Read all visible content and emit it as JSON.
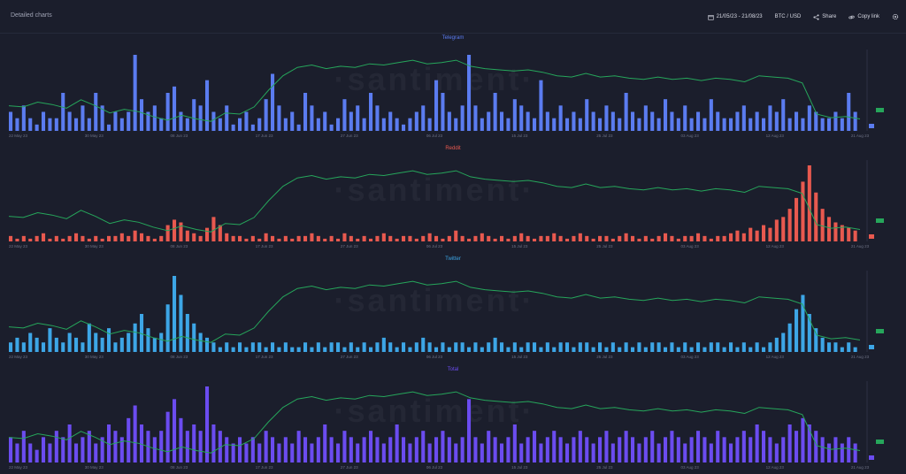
{
  "header": {
    "title": "Detailed charts",
    "date_range": "21/05/23 - 21/08/23",
    "pair": "BTC / USD",
    "share_label": "Share",
    "copy_link_label": "Copy link"
  },
  "watermark": "·santiment·",
  "colors": {
    "price": "#26a65b",
    "telegram": "#5b7cf0",
    "reddit": "#e8594f",
    "twitter": "#3da6e6",
    "total": "#6b4cf0"
  },
  "x_labels": [
    "22 May 23",
    "30 May 23",
    "08 Jun 23",
    "17 Jun 23",
    "27 Jun 23",
    "06 Jul 23",
    "15 Jul 23",
    "25 Jul 23",
    "03 Aug 23",
    "12 Aug 23",
    "21 Aug 23"
  ],
  "chart_data": [
    {
      "type": "bar",
      "title": "Telegram",
      "price_series": [
        27.1,
        27.0,
        27.4,
        27.2,
        26.9,
        27.6,
        27.1,
        26.5,
        26.8,
        26.6,
        26.2,
        25.9,
        26.3,
        26.0,
        25.8,
        26.5,
        26.4,
        27.0,
        28.4,
        29.6,
        30.3,
        30.5,
        30.2,
        30.4,
        30.3,
        30.6,
        30.5,
        30.7,
        30.9,
        30.6,
        30.7,
        30.9,
        30.4,
        30.2,
        30.1,
        30.0,
        30.1,
        29.9,
        29.6,
        29.5,
        29.8,
        29.5,
        29.6,
        29.4,
        29.3,
        29.5,
        29.3,
        29.4,
        29.2,
        29.4,
        29.3,
        29.1,
        29.6,
        29.5,
        29.4,
        29.0,
        26.4,
        26.1,
        26.2,
        26.0
      ],
      "mention_series": [
        3,
        2,
        4,
        2,
        1,
        3,
        2,
        2,
        6,
        3,
        2,
        4,
        2,
        6,
        4,
        1,
        3,
        2,
        3,
        12,
        5,
        3,
        4,
        2,
        6,
        7,
        3,
        2,
        5,
        4,
        8,
        3,
        2,
        4,
        1,
        2,
        3,
        1,
        2,
        5,
        9,
        4,
        2,
        3,
        1,
        6,
        4,
        2,
        3,
        1,
        2,
        5,
        3,
        4,
        2,
        6,
        4,
        2,
        3,
        2,
        1,
        2,
        3,
        4,
        2,
        8,
        6,
        3,
        2,
        4,
        12,
        4,
        2,
        3,
        6,
        3,
        2,
        5,
        4,
        3,
        2,
        8,
        3,
        2,
        4,
        2,
        3,
        2,
        5,
        3,
        2,
        4,
        3,
        2,
        6,
        3,
        2,
        4,
        3,
        2,
        5,
        3,
        2,
        4,
        2,
        3,
        2,
        5,
        3,
        2,
        2,
        3,
        4,
        2,
        3,
        2,
        4,
        3,
        5,
        2,
        3,
        2,
        4,
        3,
        2,
        2,
        3,
        2,
        6,
        3
      ]
    },
    {
      "type": "bar",
      "title": "Reddit",
      "price_series": [
        27.1,
        27.0,
        27.4,
        27.2,
        26.9,
        27.6,
        27.1,
        26.5,
        26.8,
        26.6,
        26.2,
        25.9,
        26.3,
        26.0,
        25.8,
        26.5,
        26.4,
        27.0,
        28.4,
        29.6,
        30.3,
        30.5,
        30.2,
        30.4,
        30.3,
        30.6,
        30.5,
        30.7,
        30.9,
        30.6,
        30.7,
        30.9,
        30.4,
        30.2,
        30.1,
        30.0,
        30.1,
        29.9,
        29.6,
        29.5,
        29.8,
        29.5,
        29.6,
        29.4,
        29.3,
        29.5,
        29.3,
        29.4,
        29.2,
        29.4,
        29.3,
        29.1,
        29.6,
        29.5,
        29.4,
        29.0,
        26.4,
        26.1,
        26.2,
        26.0
      ],
      "mention_series": [
        2,
        1,
        2,
        1,
        2,
        3,
        1,
        2,
        1,
        2,
        3,
        2,
        1,
        2,
        1,
        2,
        2,
        3,
        2,
        4,
        3,
        2,
        1,
        2,
        6,
        8,
        7,
        4,
        3,
        2,
        5,
        9,
        6,
        3,
        2,
        2,
        1,
        2,
        1,
        3,
        2,
        1,
        2,
        1,
        2,
        2,
        3,
        2,
        1,
        2,
        1,
        3,
        2,
        1,
        2,
        1,
        2,
        3,
        2,
        1,
        2,
        2,
        1,
        2,
        3,
        2,
        1,
        2,
        4,
        2,
        1,
        2,
        3,
        2,
        1,
        2,
        1,
        2,
        3,
        2,
        1,
        2,
        2,
        3,
        2,
        1,
        2,
        3,
        2,
        1,
        2,
        2,
        1,
        2,
        3,
        2,
        1,
        2,
        1,
        2,
        3,
        2,
        1,
        2,
        2,
        3,
        2,
        1,
        2,
        2,
        3,
        4,
        3,
        5,
        4,
        6,
        5,
        8,
        9,
        12,
        16,
        22,
        28,
        18,
        12,
        9,
        7,
        6,
        5,
        4
      ]
    },
    {
      "type": "bar",
      "title": "Twitter",
      "price_series": [
        27.1,
        27.0,
        27.4,
        27.2,
        26.9,
        27.6,
        27.1,
        26.5,
        26.8,
        26.6,
        26.2,
        25.9,
        26.3,
        26.0,
        25.8,
        26.5,
        26.4,
        27.0,
        28.4,
        29.6,
        30.3,
        30.5,
        30.2,
        30.4,
        30.3,
        30.6,
        30.5,
        30.7,
        30.9,
        30.6,
        30.7,
        30.9,
        30.4,
        30.2,
        30.1,
        30.0,
        30.1,
        29.9,
        29.6,
        29.5,
        29.8,
        29.5,
        29.6,
        29.4,
        29.3,
        29.5,
        29.3,
        29.4,
        29.2,
        29.4,
        29.3,
        29.1,
        29.6,
        29.5,
        29.4,
        29.0,
        26.4,
        26.1,
        26.2,
        26.0
      ],
      "mention_series": [
        2,
        3,
        2,
        4,
        3,
        2,
        5,
        3,
        2,
        4,
        3,
        2,
        6,
        4,
        3,
        5,
        2,
        3,
        4,
        6,
        8,
        5,
        3,
        4,
        10,
        16,
        12,
        8,
        6,
        4,
        3,
        2,
        1,
        2,
        1,
        2,
        1,
        2,
        2,
        1,
        2,
        1,
        2,
        1,
        1,
        2,
        1,
        2,
        1,
        2,
        2,
        1,
        2,
        1,
        2,
        1,
        2,
        3,
        2,
        1,
        2,
        1,
        2,
        3,
        2,
        1,
        2,
        1,
        2,
        2,
        1,
        2,
        1,
        2,
        3,
        2,
        1,
        2,
        1,
        2,
        2,
        1,
        2,
        1,
        2,
        2,
        1,
        2,
        2,
        1,
        2,
        1,
        2,
        1,
        2,
        1,
        2,
        1,
        2,
        2,
        1,
        2,
        1,
        2,
        1,
        2,
        1,
        2,
        2,
        1,
        2,
        1,
        2,
        1,
        2,
        1,
        2,
        3,
        4,
        6,
        9,
        12,
        8,
        5,
        3,
        2,
        2,
        1,
        2,
        1
      ]
    },
    {
      "type": "bar",
      "title": "Total",
      "price_series": [
        27.1,
        27.0,
        27.4,
        27.2,
        26.9,
        27.6,
        27.1,
        26.5,
        26.8,
        26.6,
        26.2,
        25.9,
        26.3,
        26.0,
        25.8,
        26.5,
        26.4,
        27.0,
        28.4,
        29.6,
        30.3,
        30.5,
        30.2,
        30.4,
        30.3,
        30.6,
        30.5,
        30.7,
        30.9,
        30.6,
        30.7,
        30.9,
        30.4,
        30.2,
        30.1,
        30.0,
        30.1,
        29.9,
        29.6,
        29.5,
        29.8,
        29.5,
        29.6,
        29.4,
        29.3,
        29.5,
        29.3,
        29.4,
        29.2,
        29.4,
        29.3,
        29.1,
        29.6,
        29.5,
        29.4,
        29.0,
        26.4,
        26.1,
        26.2,
        26.0
      ],
      "mention_series": [
        4,
        3,
        5,
        3,
        2,
        4,
        3,
        5,
        4,
        6,
        3,
        4,
        5,
        3,
        4,
        6,
        5,
        4,
        7,
        9,
        6,
        5,
        4,
        5,
        8,
        10,
        7,
        5,
        6,
        5,
        12,
        6,
        5,
        4,
        3,
        4,
        3,
        4,
        3,
        5,
        4,
        3,
        4,
        3,
        5,
        4,
        3,
        4,
        6,
        4,
        3,
        5,
        4,
        3,
        4,
        5,
        4,
        3,
        4,
        6,
        4,
        3,
        4,
        5,
        3,
        4,
        5,
        4,
        3,
        4,
        10,
        4,
        3,
        5,
        4,
        3,
        4,
        6,
        3,
        4,
        5,
        3,
        4,
        5,
        4,
        3,
        4,
        5,
        4,
        3,
        4,
        5,
        3,
        4,
        5,
        4,
        3,
        4,
        5,
        3,
        4,
        5,
        4,
        3,
        4,
        5,
        4,
        3,
        5,
        4,
        3,
        4,
        5,
        4,
        6,
        5,
        4,
        3,
        4,
        6,
        5,
        7,
        6,
        5,
        4,
        3,
        4,
        3,
        4,
        3
      ]
    }
  ]
}
